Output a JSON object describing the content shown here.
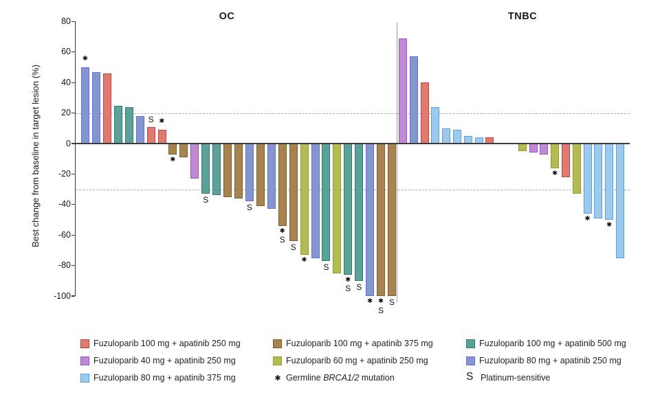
{
  "figure_title": "",
  "chart_data": {
    "type": "bar",
    "subtype": "waterfall",
    "ylabel": "Best change from baseline in target lesion (%)",
    "ylim": [
      -100,
      80
    ],
    "y_ticks": [
      80,
      60,
      40,
      20,
      0,
      -20,
      -40,
      -60,
      -80,
      -100
    ],
    "reference_lines": [
      20,
      -30
    ],
    "grid": "dashed-horizontal-reference-lines",
    "legend_position": "bottom",
    "panels": [
      {
        "title": "OC",
        "bars": [
          {
            "c": "blue",
            "v": 50,
            "m": [
              "*"
            ],
            "mpos": "above"
          },
          {
            "c": "blue",
            "v": 47
          },
          {
            "c": "red",
            "v": 46
          },
          {
            "c": "teal",
            "v": 25
          },
          {
            "c": "teal",
            "v": 24
          },
          {
            "c": "blue",
            "v": 18
          },
          {
            "c": "red",
            "v": 11,
            "m": [
              "S"
            ],
            "mpos": "above"
          },
          {
            "c": "red",
            "v": 9,
            "m": [
              "*"
            ],
            "mpos": "above"
          },
          {
            "c": "brown",
            "v": -7,
            "m": [
              "*"
            ]
          },
          {
            "c": "brown",
            "v": -9
          },
          {
            "c": "purple",
            "v": -23
          },
          {
            "c": "teal",
            "v": -33,
            "m": [
              "S"
            ]
          },
          {
            "c": "teal",
            "v": -34
          },
          {
            "c": "brown",
            "v": -35
          },
          {
            "c": "brown",
            "v": -36
          },
          {
            "c": "blue",
            "v": -38,
            "m": [
              "S"
            ]
          },
          {
            "c": "brown",
            "v": -41
          },
          {
            "c": "blue",
            "v": -43
          },
          {
            "c": "brown",
            "v": -54,
            "m": [
              "*",
              "S"
            ]
          },
          {
            "c": "brown",
            "v": -64,
            "m": [
              "S"
            ]
          },
          {
            "c": "olive",
            "v": -73,
            "m": [
              "*"
            ]
          },
          {
            "c": "blue",
            "v": -75
          },
          {
            "c": "teal",
            "v": -77,
            "m": [
              "S"
            ]
          },
          {
            "c": "olive",
            "v": -85
          },
          {
            "c": "teal",
            "v": -86,
            "m": [
              "*",
              "S"
            ]
          },
          {
            "c": "teal",
            "v": -90,
            "m": [
              "S"
            ]
          },
          {
            "c": "blue",
            "v": -100,
            "m": [
              "*"
            ]
          },
          {
            "c": "brown",
            "v": -100,
            "m": [
              "*",
              "S"
            ]
          },
          {
            "c": "brown",
            "v": -100,
            "m": [
              "S"
            ]
          }
        ]
      },
      {
        "title": "TNBC",
        "gap_after": 9,
        "gap_slots": 2,
        "bars": [
          {
            "c": "purple",
            "v": 69
          },
          {
            "c": "blue",
            "v": 57
          },
          {
            "c": "red",
            "v": 40
          },
          {
            "c": "lightblue",
            "v": 24
          },
          {
            "c": "lightblue",
            "v": 10
          },
          {
            "c": "lightblue",
            "v": 9
          },
          {
            "c": "lightblue",
            "v": 5
          },
          {
            "c": "lightblue",
            "v": 4
          },
          {
            "c": "red",
            "v": 4
          },
          {
            "c": "olive",
            "v": -5
          },
          {
            "c": "purple",
            "v": -6
          },
          {
            "c": "purple",
            "v": -7
          },
          {
            "c": "olive",
            "v": -16,
            "m": [
              "*"
            ]
          },
          {
            "c": "red",
            "v": -22
          },
          {
            "c": "olive",
            "v": -33
          },
          {
            "c": "lightblue",
            "v": -46,
            "m": [
              "*"
            ]
          },
          {
            "c": "lightblue",
            "v": -49
          },
          {
            "c": "lightblue",
            "v": -50,
            "m": [
              "*"
            ]
          },
          {
            "c": "lightblue",
            "v": -75
          }
        ]
      }
    ]
  },
  "colors": {
    "red": {
      "fill": "#DD7A72",
      "stroke": "#C0443C"
    },
    "brown": {
      "fill": "#A9834F",
      "stroke": "#7F5E2E"
    },
    "teal": {
      "fill": "#5BA197",
      "stroke": "#2E7D72"
    },
    "purple": {
      "fill": "#BE8BD3",
      "stroke": "#A050C8"
    },
    "olive": {
      "fill": "#B5BB53",
      "stroke": "#8F9B2C"
    },
    "blue": {
      "fill": "#8396CE",
      "stroke": "#6A6AE2"
    },
    "lightblue": {
      "fill": "#9DC9EC",
      "stroke": "#58A0DC"
    },
    "axis": "#3b3b3b",
    "dashed_line": "#ababab",
    "separator": "#9a9a9a"
  },
  "legend": {
    "entries": [
      {
        "type": "swatch",
        "color": "red",
        "label": "Fuzuloparib 100 mg + apatinib 250 mg"
      },
      {
        "type": "swatch",
        "color": "brown",
        "label": "Fuzuloparib 100 mg + apatinib 375 mg"
      },
      {
        "type": "swatch",
        "color": "teal",
        "label": "Fuzuloparib 100 mg + apatinib 500 mg"
      },
      {
        "type": "swatch",
        "color": "purple",
        "label": "Fuzuloparib 40 mg + apatinib 250 mg"
      },
      {
        "type": "swatch",
        "color": "olive",
        "label": "Fuzuloparib 60 mg + apatinib 250 mg"
      },
      {
        "type": "swatch",
        "color": "blue",
        "label": "Fuzuloparib 80 mg + apatinib 250 mg"
      },
      {
        "type": "swatch",
        "color": "lightblue",
        "label": "Fuzuloparib 80 mg + apatinib 375 mg"
      },
      {
        "type": "star",
        "symbol": "✱",
        "label_parts": [
          "Germline ",
          "BRCA1/2",
          " mutation"
        ]
      },
      {
        "type": "s",
        "symbol": "S",
        "label": "Platinum-sensitive"
      }
    ]
  }
}
